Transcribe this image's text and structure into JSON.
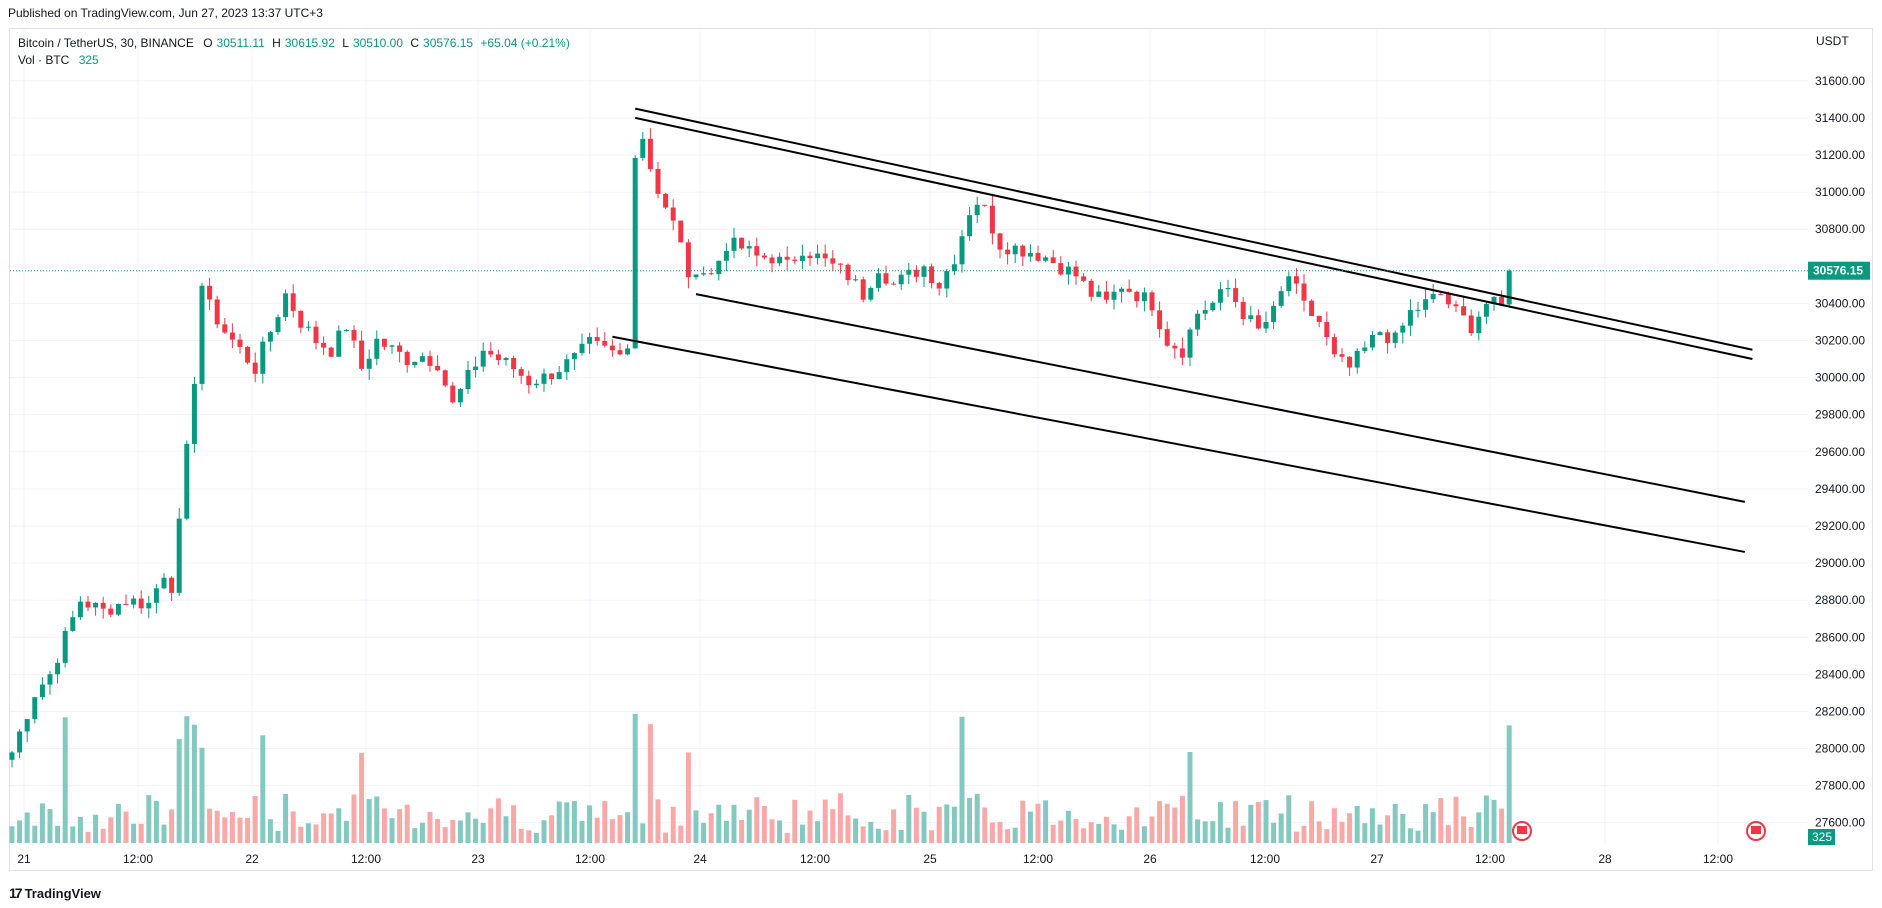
{
  "header": {
    "published": "Published on TradingView.com, Jun 27, 2023 13:37 UTC+3"
  },
  "legend": {
    "symbol": "Bitcoin / TetherUS, 30, BINANCE",
    "open_label": "O",
    "open": "30511.11",
    "high_label": "H",
    "high": "30615.92",
    "low_label": "L",
    "low": "30510.00",
    "close_label": "C",
    "close": "30576.15",
    "change": "+65.04 (+0.21%)",
    "vol_label": "Vol · BTC",
    "vol_value": "325"
  },
  "footer": {
    "logo_text": "TradingView"
  },
  "colors": {
    "up": "#089981",
    "down": "#f23645",
    "vol_up": "#84c9c0",
    "vol_down": "#f7a9a7",
    "grid": "#f0f3fa",
    "axis_text": "#131722"
  },
  "chart_data": {
    "type": "candlestick",
    "currency": "USDT",
    "y_ticks": [
      "27600.00",
      "27800.00",
      "28000.00",
      "28200.00",
      "28400.00",
      "28600.00",
      "28800.00",
      "29000.00",
      "29200.00",
      "29400.00",
      "29600.00",
      "29800.00",
      "30000.00",
      "30200.00",
      "30400.00",
      "30600.00",
      "30800.00",
      "31000.00",
      "31200.00",
      "31400.00",
      "31600.00"
    ],
    "ylim": [
      27480,
      31820
    ],
    "x_ticks": [
      "21",
      "12:00",
      "22",
      "12:00",
      "23",
      "12:00",
      "24",
      "12:00",
      "25",
      "12:00",
      "26",
      "12:00",
      "27",
      "12:00",
      "28",
      "12:00"
    ],
    "last_price": "30576.15",
    "last_volume": "325",
    "price_path": [
      [
        0,
        27980
      ],
      [
        3,
        28300
      ],
      [
        5,
        28400
      ],
      [
        8,
        28700
      ],
      [
        9,
        28800
      ],
      [
        12,
        28740
      ],
      [
        15,
        28800
      ],
      [
        18,
        28780
      ],
      [
        20,
        28950
      ],
      [
        21,
        28880
      ],
      [
        22,
        29200
      ],
      [
        23,
        29600
      ],
      [
        24,
        30000
      ],
      [
        25,
        30500
      ],
      [
        26,
        30380
      ],
      [
        28,
        30250
      ],
      [
        30,
        30150
      ],
      [
        32,
        30050
      ],
      [
        34,
        30250
      ],
      [
        36,
        30450
      ],
      [
        38,
        30300
      ],
      [
        40,
        30200
      ],
      [
        42,
        30150
      ],
      [
        44,
        30280
      ],
      [
        46,
        30050
      ],
      [
        48,
        30200
      ],
      [
        50,
        30150
      ],
      [
        52,
        30100
      ],
      [
        54,
        30120
      ],
      [
        56,
        30080
      ],
      [
        58,
        29850
      ],
      [
        60,
        30000
      ],
      [
        62,
        30150
      ],
      [
        64,
        30100
      ],
      [
        66,
        30050
      ],
      [
        68,
        29980
      ],
      [
        70,
        30000
      ],
      [
        72,
        30050
      ],
      [
        74,
        30100
      ],
      [
        76,
        30180
      ],
      [
        78,
        30150
      ],
      [
        80,
        30120
      ],
      [
        81,
        30200
      ],
      [
        82,
        31200
      ],
      [
        83,
        31300
      ],
      [
        84,
        31150
      ],
      [
        85,
        31000
      ],
      [
        86,
        30900
      ],
      [
        88,
        30750
      ],
      [
        89,
        30500
      ],
      [
        90,
        30600
      ],
      [
        92,
        30550
      ],
      [
        94,
        30720
      ],
      [
        96,
        30700
      ],
      [
        98,
        30650
      ],
      [
        100,
        30650
      ],
      [
        102,
        30600
      ],
      [
        104,
        30700
      ],
      [
        106,
        30650
      ],
      [
        108,
        30600
      ],
      [
        110,
        30550
      ],
      [
        112,
        30450
      ],
      [
        114,
        30600
      ],
      [
        116,
        30500
      ],
      [
        118,
        30550
      ],
      [
        120,
        30600
      ],
      [
        122,
        30500
      ],
      [
        124,
        30650
      ],
      [
        126,
        30900
      ],
      [
        127,
        30950
      ],
      [
        128,
        30900
      ],
      [
        130,
        30720
      ],
      [
        132,
        30700
      ],
      [
        134,
        30680
      ],
      [
        136,
        30650
      ],
      [
        138,
        30600
      ],
      [
        140,
        30550
      ],
      [
        142,
        30450
      ],
      [
        144,
        30400
      ],
      [
        146,
        30500
      ],
      [
        148,
        30450
      ],
      [
        150,
        30400
      ],
      [
        152,
        30200
      ],
      [
        154,
        30150
      ],
      [
        156,
        30350
      ],
      [
        158,
        30400
      ],
      [
        160,
        30480
      ],
      [
        162,
        30350
      ],
      [
        164,
        30250
      ],
      [
        166,
        30350
      ],
      [
        168,
        30550
      ],
      [
        170,
        30380
      ],
      [
        172,
        30300
      ],
      [
        174,
        30100
      ],
      [
        176,
        30050
      ],
      [
        178,
        30150
      ],
      [
        180,
        30250
      ],
      [
        182,
        30200
      ],
      [
        184,
        30350
      ],
      [
        186,
        30400
      ],
      [
        188,
        30450
      ],
      [
        190,
        30350
      ],
      [
        192,
        30280
      ],
      [
        194,
        30400
      ],
      [
        196,
        30380
      ],
      [
        197,
        30576
      ]
    ],
    "trendlines": [
      {
        "name": "upper-outer",
        "x1_data": 82,
        "y1_data": 31450,
        "x2_data": 229,
        "y2_data": 30150
      },
      {
        "name": "upper-inner",
        "x1_data": 82,
        "y1_data": 31400,
        "x2_data": 229,
        "y2_data": 30100
      },
      {
        "name": "middle",
        "x1_data": 90,
        "y1_data": 30450,
        "x2_data": 228,
        "y2_data": 29330
      },
      {
        "name": "lower",
        "x1_data": 79,
        "y1_data": 30220,
        "x2_data": 228,
        "y2_data": 29060
      }
    ]
  }
}
